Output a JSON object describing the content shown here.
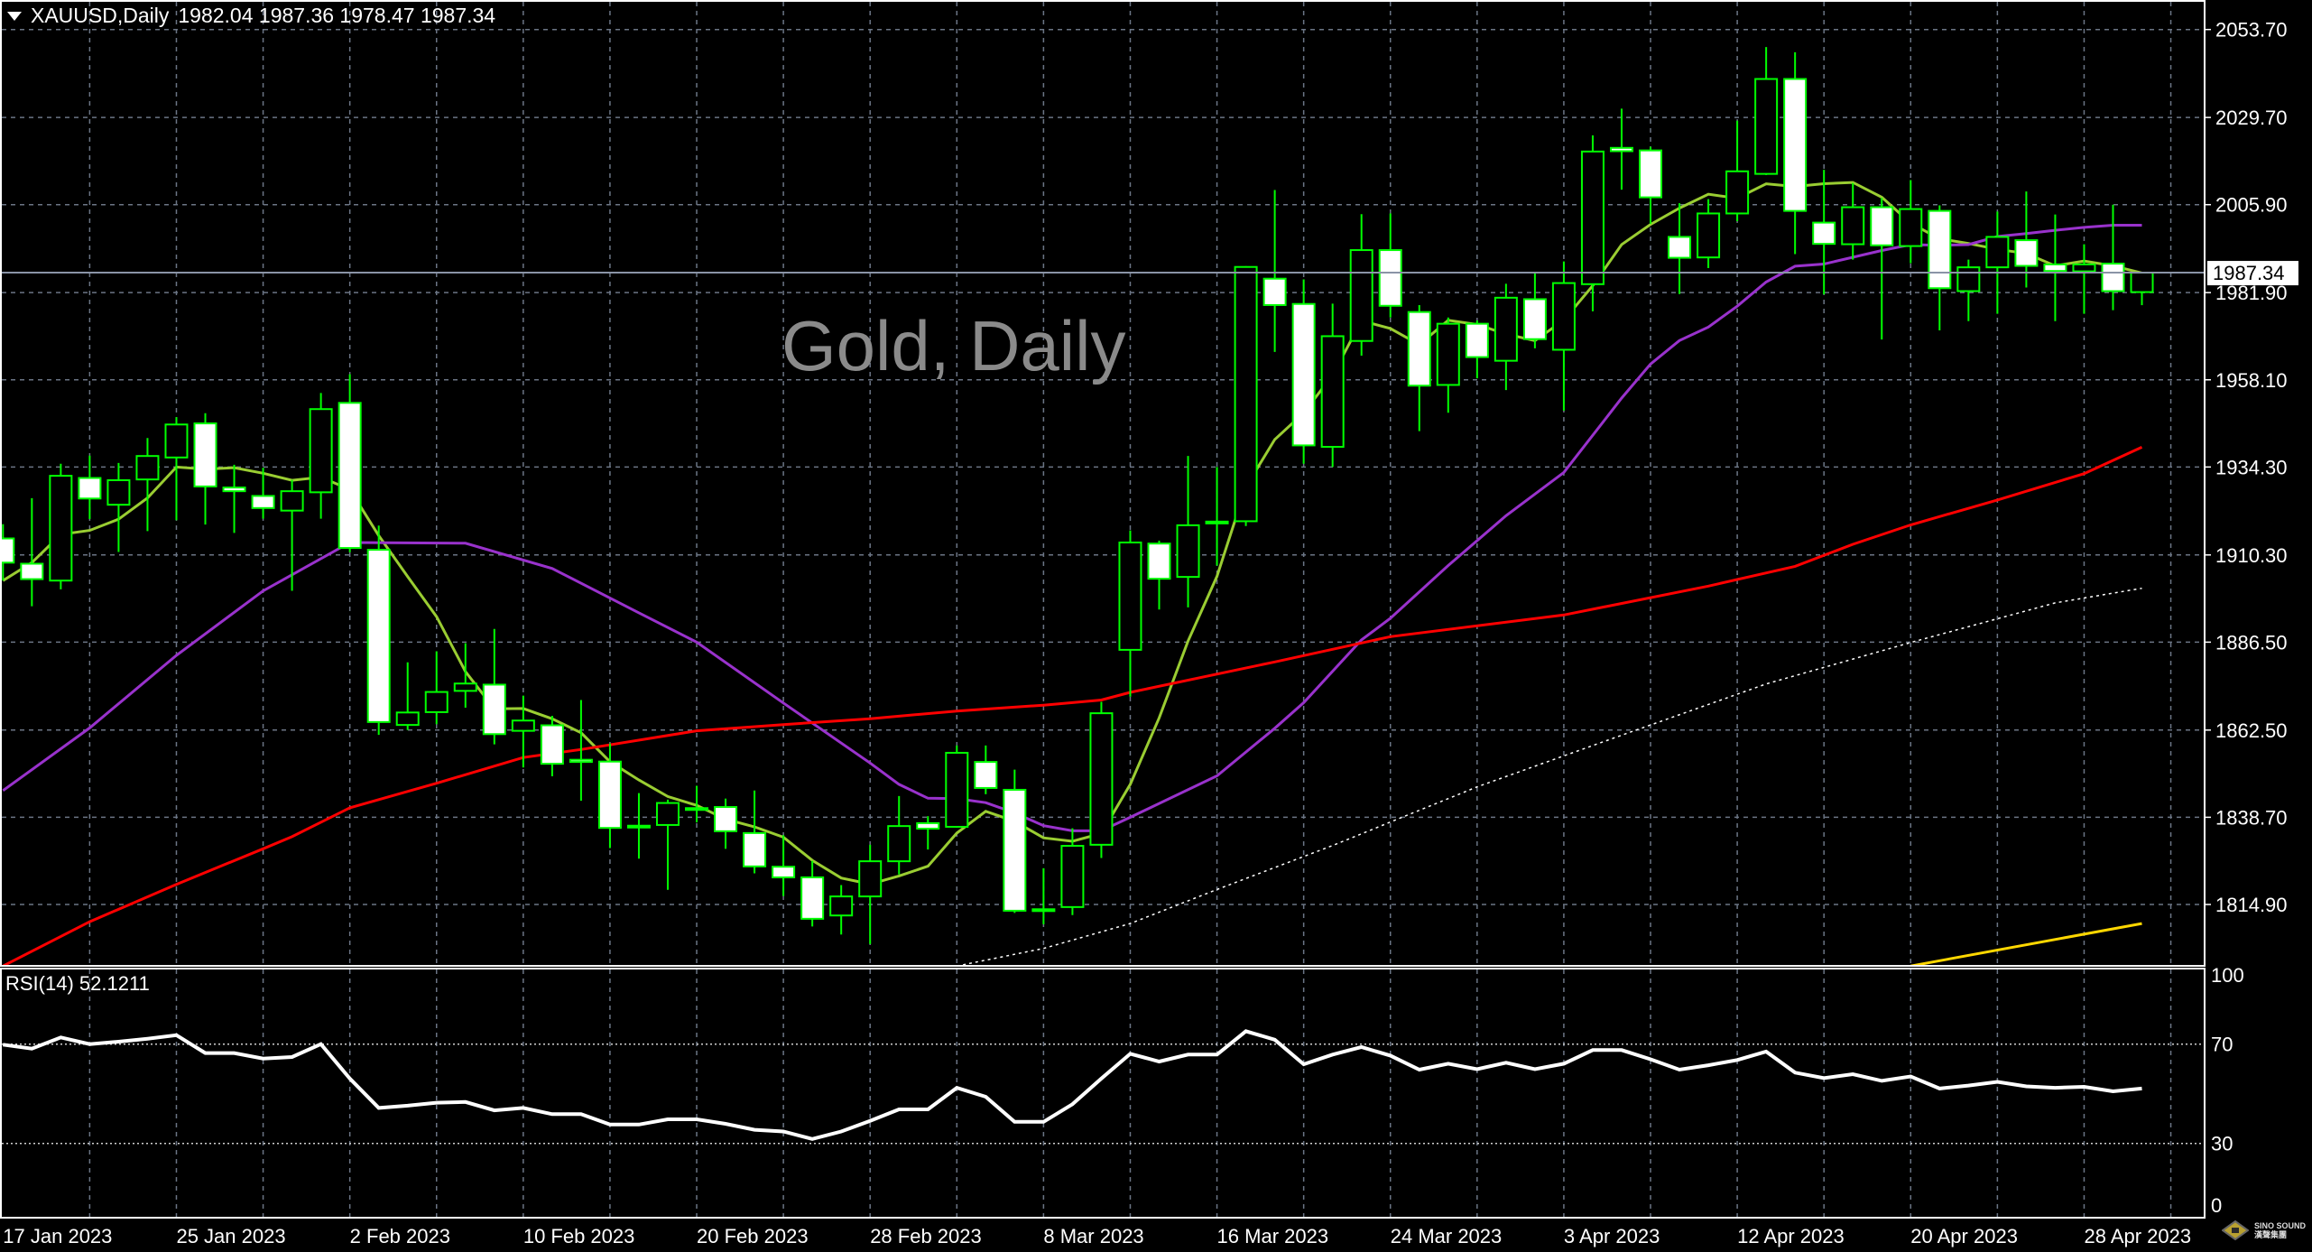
{
  "header": {
    "symbol": "XAUUSD,Daily",
    "ohlc": "1982.04 1987.36 1978.47 1987.34"
  },
  "watermark": "Gold, Daily",
  "rsi_label": "RSI(14) 52.1211",
  "logo": {
    "text": "SINO SOUND",
    "subtext": "漢聲集團"
  },
  "colors": {
    "background": "#000000",
    "grid": "#6b7585",
    "bull_body": "#000000",
    "bear_body": "#ffffff",
    "candle_outline": "#00ff00",
    "current_price_line": "#8a94a6"
  },
  "chart_data": [
    {
      "type": "candlestick",
      "title": "XAUUSD,Daily",
      "ylim": [
        1798.1,
        2061.8
      ],
      "grid": true,
      "y_ticks": [
        "2053.70",
        "2029.70",
        "2005.90",
        "1981.90",
        "1958.10",
        "1934.30",
        "1910.30",
        "1886.50",
        "1862.50",
        "1838.70",
        "1814.90"
      ],
      "current_price": "1987.34",
      "x_ticks": [
        {
          "label": "17 Jan 2023",
          "bar": 0
        },
        {
          "label": "25 Jan 2023",
          "bar": 6
        },
        {
          "label": "2 Feb 2023",
          "bar": 12
        },
        {
          "label": "10 Feb 2023",
          "bar": 18
        },
        {
          "label": "20 Feb 2023",
          "bar": 24
        },
        {
          "label": "28 Feb 2023",
          "bar": 30
        },
        {
          "label": "8 Mar 2023",
          "bar": 36
        },
        {
          "label": "16 Mar 2023",
          "bar": 42
        },
        {
          "label": "24 Mar 2023",
          "bar": 48
        },
        {
          "label": "3 Apr 2023",
          "bar": 54
        },
        {
          "label": "12 Apr 2023",
          "bar": 60
        },
        {
          "label": "20 Apr 2023",
          "bar": 66
        },
        {
          "label": "28 Apr 2023",
          "bar": 72
        }
      ],
      "ohlc": [
        [
          1914.8,
          1918.7,
          1903.3,
          1908.2
        ],
        [
          1907.9,
          1925.8,
          1896.3,
          1903.7
        ],
        [
          1903.3,
          1935.2,
          1900.9,
          1931.9
        ],
        [
          1931.3,
          1937.4,
          1920.1,
          1925.7
        ],
        [
          1924.0,
          1935.4,
          1911.1,
          1930.7
        ],
        [
          1930.9,
          1942.2,
          1916.8,
          1937.3
        ],
        [
          1936.9,
          1947.9,
          1919.8,
          1945.9
        ],
        [
          1946.2,
          1949.0,
          1918.6,
          1929.0
        ],
        [
          1928.7,
          1934.9,
          1916.3,
          1927.7
        ],
        [
          1926.4,
          1934.1,
          1920.2,
          1923.1
        ],
        [
          1922.4,
          1930.8,
          1900.5,
          1927.7
        ],
        [
          1927.4,
          1954.5,
          1920.2,
          1950.1
        ],
        [
          1951.8,
          1959.6,
          1911.0,
          1912.2
        ],
        [
          1911.7,
          1918.3,
          1861.2,
          1864.7
        ],
        [
          1863.9,
          1881.0,
          1862.5,
          1867.3
        ],
        [
          1867.4,
          1884.0,
          1864.1,
          1872.9
        ],
        [
          1873.2,
          1886.2,
          1868.6,
          1875.2
        ],
        [
          1874.9,
          1890.1,
          1858.6,
          1861.4
        ],
        [
          1862.3,
          1871.9,
          1852.3,
          1865.1
        ],
        [
          1863.8,
          1866.4,
          1849.9,
          1853.3
        ],
        [
          1854.4,
          1870.7,
          1843.2,
          1853.8
        ],
        [
          1853.9,
          1858.8,
          1830.3,
          1835.8
        ],
        [
          1836.0,
          1845.3,
          1827.4,
          1836.4
        ],
        [
          1836.6,
          1843.5,
          1818.9,
          1842.6
        ],
        [
          1841.0,
          1847.3,
          1837.3,
          1841.2
        ],
        [
          1841.5,
          1843.8,
          1830.1,
          1834.9
        ],
        [
          1834.4,
          1846.0,
          1823.4,
          1825.3
        ],
        [
          1825.2,
          1833.8,
          1817.2,
          1822.3
        ],
        [
          1822.3,
          1826.8,
          1808.9,
          1811.0
        ],
        [
          1811.9,
          1820.2,
          1806.7,
          1817.1
        ],
        [
          1817.1,
          1831.2,
          1804.1,
          1826.7
        ],
        [
          1826.7,
          1844.5,
          1823.1,
          1836.3
        ],
        [
          1837.1,
          1839.0,
          1829.9,
          1835.6
        ],
        [
          1836.1,
          1858.3,
          1835.9,
          1856.3
        ],
        [
          1853.8,
          1858.3,
          1845.0,
          1846.7
        ],
        [
          1846.2,
          1851.7,
          1812.6,
          1813.2
        ],
        [
          1813.4,
          1824.8,
          1809.5,
          1813.6
        ],
        [
          1814.2,
          1835.7,
          1812.0,
          1830.9
        ],
        [
          1831.2,
          1870.2,
          1827.6,
          1867.1
        ],
        [
          1884.4,
          1917.0,
          1871.6,
          1913.7
        ],
        [
          1913.4,
          1914.2,
          1895.4,
          1903.8
        ],
        [
          1904.3,
          1937.3,
          1896.0,
          1918.4
        ],
        [
          1919.2,
          1934.3,
          1907.4,
          1919.4
        ],
        [
          1919.5,
          1989.1,
          1918.2,
          1988.9
        ],
        [
          1985.7,
          2009.9,
          1965.7,
          1978.5
        ],
        [
          1978.8,
          1985.5,
          1935.2,
          1940.2
        ],
        [
          1939.8,
          1978.9,
          1934.3,
          1970.0
        ],
        [
          1968.7,
          2003.3,
          1964.7,
          1993.5
        ],
        [
          1993.5,
          2003.5,
          1975.1,
          1978.3
        ],
        [
          1976.6,
          1978.5,
          1944.1,
          1956.5
        ],
        [
          1956.7,
          1975.1,
          1949.1,
          1973.4
        ],
        [
          1973.4,
          1974.3,
          1958.5,
          1964.3
        ],
        [
          1963.3,
          1984.3,
          1955.3,
          1980.5
        ],
        [
          1980.1,
          1987.4,
          1966.7,
          1969.2
        ],
        [
          1966.3,
          1990.4,
          1949.7,
          1984.5
        ],
        [
          1984.2,
          2024.8,
          1976.8,
          2020.4
        ],
        [
          2021.4,
          2032.1,
          2010.0,
          2020.5
        ],
        [
          2020.7,
          2021.7,
          2000.7,
          2007.9
        ],
        [
          1997.1,
          2006.3,
          1981.5,
          1991.4
        ],
        [
          1991.5,
          2007.4,
          1988.6,
          2003.5
        ],
        [
          2003.5,
          2028.8,
          2001.4,
          2015.0
        ],
        [
          2014.3,
          2048.9,
          2014.0,
          2040.2
        ],
        [
          2040.2,
          2047.5,
          1992.4,
          2004.2
        ],
        [
          2001.0,
          2015.4,
          1981.4,
          1995.2
        ],
        [
          1995.1,
          2011.8,
          1990.9,
          2005.2
        ],
        [
          2005.2,
          2007.7,
          1969.1,
          1994.8
        ],
        [
          1994.6,
          2012.6,
          1989.9,
          2004.7
        ],
        [
          2004.2,
          2005.7,
          1971.6,
          1983.1
        ],
        [
          1982.3,
          1990.9,
          1974.1,
          1988.8
        ],
        [
          1988.8,
          2004.0,
          1976.1,
          1997.1
        ],
        [
          1996.2,
          2009.5,
          1983.3,
          1989.2
        ],
        [
          1989.6,
          2003.2,
          1974.1,
          1987.8
        ],
        [
          1987.7,
          1995.1,
          1976.1,
          1989.6
        ],
        [
          1989.8,
          2005.9,
          1977.1,
          1982.3
        ],
        [
          1982.04,
          1987.36,
          1978.47,
          1987.34
        ]
      ],
      "moving_averages": [
        {
          "color": "#9acd32",
          "style": "solid",
          "period": 5,
          "first_values": [
            1903.3,
            1908.2,
            1915.9,
            1917.0
          ]
        },
        {
          "color": "#9932cc",
          "style": "solid",
          "points": [
            [
              0,
              1846
            ],
            [
              3,
              1863.1
            ],
            [
              6,
              1882.9
            ],
            [
              9,
              1900.5
            ],
            [
              12,
              1913.7
            ],
            [
              16,
              1913.5
            ],
            [
              19,
              1906.6
            ],
            [
              22,
              1894.5
            ],
            [
              24,
              1886.5
            ],
            [
              27,
              1869.9
            ],
            [
              30,
              1853.5
            ],
            [
              31,
              1847.7
            ],
            [
              32,
              1843.9
            ],
            [
              33,
              1843.8
            ],
            [
              34,
              1842.7
            ],
            [
              35,
              1839.9
            ],
            [
              36,
              1836.4
            ],
            [
              37,
              1835
            ],
            [
              38,
              1835
            ],
            [
              39,
              1838.7
            ],
            [
              42,
              1850
            ],
            [
              44,
              1863
            ],
            [
              45,
              1870
            ],
            [
              47,
              1887.1
            ],
            [
              48,
              1893
            ],
            [
              50,
              1907.4
            ],
            [
              52,
              1921
            ],
            [
              54,
              1932.8
            ],
            [
              56,
              1953.1
            ],
            [
              57,
              1962.4
            ],
            [
              58,
              1968.8
            ],
            [
              59,
              1972.5
            ],
            [
              60,
              1978.2
            ],
            [
              61,
              1984.8
            ],
            [
              62,
              1989.1
            ],
            [
              63,
              1989.7
            ],
            [
              65,
              1993.4
            ],
            [
              66,
              1995
            ],
            [
              67,
              1994.8
            ],
            [
              68,
              1995
            ],
            [
              69,
              1997.2
            ],
            [
              70,
              1998
            ],
            [
              71,
              1998.9
            ],
            [
              72,
              1999.7
            ],
            [
              73,
              2000.3
            ],
            [
              74,
              2000.3
            ]
          ]
        },
        {
          "color": "#ff0000",
          "style": "solid",
          "points": [
            [
              0,
              1798.1
            ],
            [
              3,
              1810.2
            ],
            [
              6,
              1820.4
            ],
            [
              9,
              1830.1
            ],
            [
              10,
              1833.4
            ],
            [
              12,
              1841.3
            ],
            [
              15,
              1848
            ],
            [
              18,
              1855
            ],
            [
              20,
              1857.2
            ],
            [
              24,
              1862.3
            ],
            [
              27,
              1864
            ],
            [
              30,
              1865.6
            ],
            [
              33,
              1867.7
            ],
            [
              36,
              1869.3
            ],
            [
              38,
              1870.7
            ],
            [
              39,
              1872.8
            ],
            [
              44,
              1881.1
            ],
            [
              48,
              1888
            ],
            [
              54,
              1893.9
            ],
            [
              59,
              1901.8
            ],
            [
              62,
              1907.2
            ],
            [
              64,
              1913.2
            ],
            [
              66,
              1918.5
            ],
            [
              69,
              1925.3
            ],
            [
              72,
              1932.5
            ],
            [
              74,
              1939.7
            ]
          ]
        },
        {
          "color": "#ffffff",
          "style": "dotted",
          "points": [
            [
              33,
              1798.1
            ],
            [
              36,
              1802.9
            ],
            [
              39,
              1809.7
            ],
            [
              42,
              1819
            ],
            [
              46,
              1831
            ],
            [
              51,
              1847
            ],
            [
              56,
              1861.1
            ],
            [
              61,
              1875.1
            ],
            [
              66,
              1886.4
            ],
            [
              71,
              1897.2
            ],
            [
              74,
              1901.2
            ]
          ]
        },
        {
          "color": "#ffd700",
          "style": "solid",
          "points": [
            [
              66,
              1798.1
            ],
            [
              74,
              1809.7
            ]
          ]
        }
      ]
    },
    {
      "type": "line",
      "title": "RSI(14) 52.1211",
      "ylim": [
        0,
        100
      ],
      "y_ticks": [
        "100",
        "70",
        "30",
        "0"
      ],
      "levels": [
        70,
        30
      ],
      "color": "#ffffff",
      "values": [
        69.8,
        68.2,
        72.7,
        70,
        71,
        72.2,
        73.6,
        66.4,
        66.4,
        64.2,
        64.8,
        70,
        56.1,
        44.3,
        45.2,
        46.4,
        46.7,
        43.3,
        44.3,
        41.8,
        41.8,
        37.6,
        37.6,
        39.7,
        39.7,
        37.9,
        35.5,
        34.8,
        31.8,
        34.8,
        39.1,
        43.7,
        43.7,
        52.4,
        48.8,
        38.7,
        38.7,
        45.8,
        56.1,
        66.1,
        63,
        65.8,
        65.8,
        75.2,
        71.8,
        61.9,
        65.8,
        68.8,
        65.4,
        59.7,
        62.1,
        59.9,
        62.5,
        59.9,
        62.1,
        67.6,
        67.6,
        63.9,
        59.7,
        61.5,
        63.6,
        67,
        58.5,
        56.3,
        57.9,
        55.2,
        57,
        52.1,
        53.3,
        54.8,
        53,
        52.4,
        52.8,
        51,
        52.1211
      ]
    }
  ]
}
